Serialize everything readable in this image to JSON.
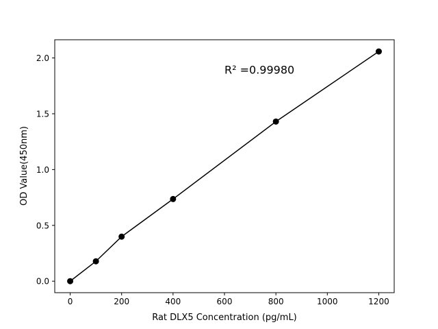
{
  "chart_data": {
    "type": "line",
    "title": "",
    "xlabel": "Rat DLX5 Concentration (pg/mL)",
    "ylabel": "OD Value(450nm)",
    "xlim": [
      -60,
      1260
    ],
    "ylim": [
      -0.103,
      2.163
    ],
    "xticks": [
      0,
      200,
      400,
      600,
      800,
      1000,
      1200
    ],
    "yticks": [
      0.0,
      0.5,
      1.0,
      1.5,
      2.0
    ],
    "xtick_labels": [
      "0",
      "200",
      "400",
      "600",
      "800",
      "1000",
      "1200"
    ],
    "ytick_labels": [
      "0.0",
      "0.5",
      "1.0",
      "1.5",
      "2.0"
    ],
    "grid": false,
    "series": [
      {
        "x": [
          0,
          100,
          200,
          400,
          800,
          1200
        ],
        "y": [
          0.0,
          0.178,
          0.399,
          0.736,
          1.43,
          2.058
        ],
        "color": "#000000",
        "marker": "circle"
      }
    ],
    "annotation": {
      "text": "R² =0.99980",
      "x": 600,
      "y": 1.86
    }
  }
}
